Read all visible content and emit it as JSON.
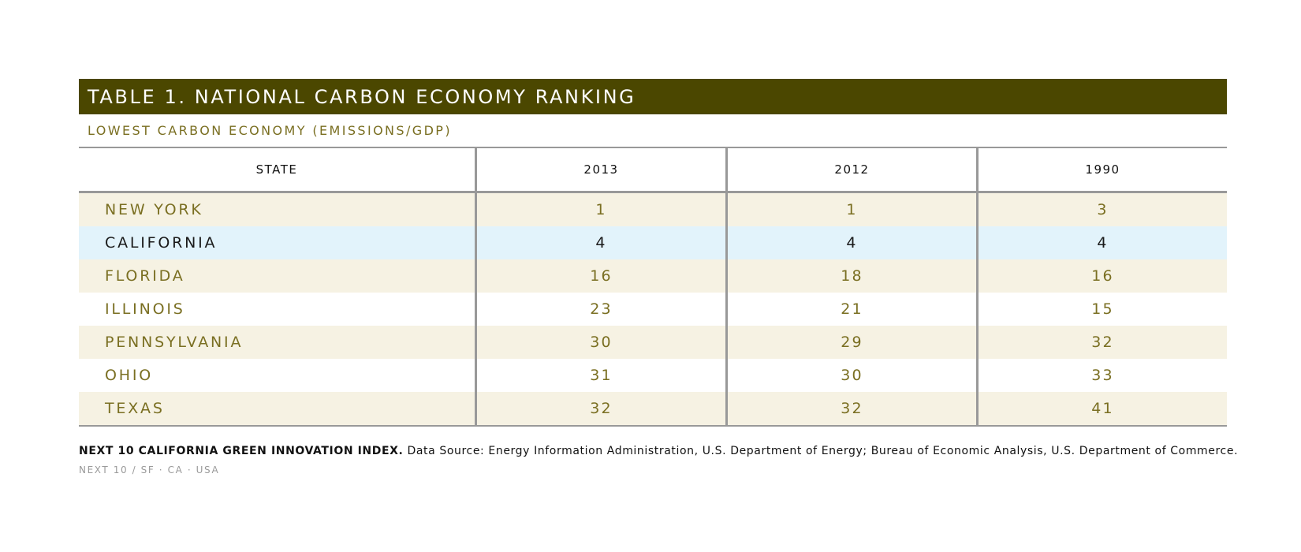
{
  "title": "TABLE 1. NATIONAL CARBON ECONOMY RANKING",
  "subtitle": "LOWEST CARBON ECONOMY (EMISSIONS/GDP)",
  "table": {
    "headers": [
      "STATE",
      "2013",
      "2012",
      "1990"
    ],
    "rows": [
      [
        "NEW YORK",
        "1",
        "1",
        "3"
      ],
      [
        "CALIFORNIA",
        "4",
        "4",
        "4"
      ],
      [
        "FLORIDA",
        "16",
        "18",
        "16"
      ],
      [
        "ILLINOIS",
        "23",
        "21",
        "15"
      ],
      [
        "PENNSYLVANIA",
        "30",
        "29",
        "32"
      ],
      [
        "OHIO",
        "31",
        "30",
        "33"
      ],
      [
        "TEXAS",
        "32",
        "32",
        "41"
      ]
    ]
  },
  "source": {
    "bold": "NEXT 10 CALIFORNIA GREEN INNOVATION INDEX.",
    "text": " Data Source: Energy Information Administration, U.S. Department of Energy; Bureau of Economic Analysis, U.S. Department of Commerce."
  },
  "footer": "NEXT 10  /  SF · CA · USA",
  "colors": {
    "title_bar": "#4b4700",
    "accent_text": "#7a6f22",
    "row_shade": "#f6f2e3",
    "highlight_row": "#e2f3fb",
    "rule": "#999999"
  }
}
